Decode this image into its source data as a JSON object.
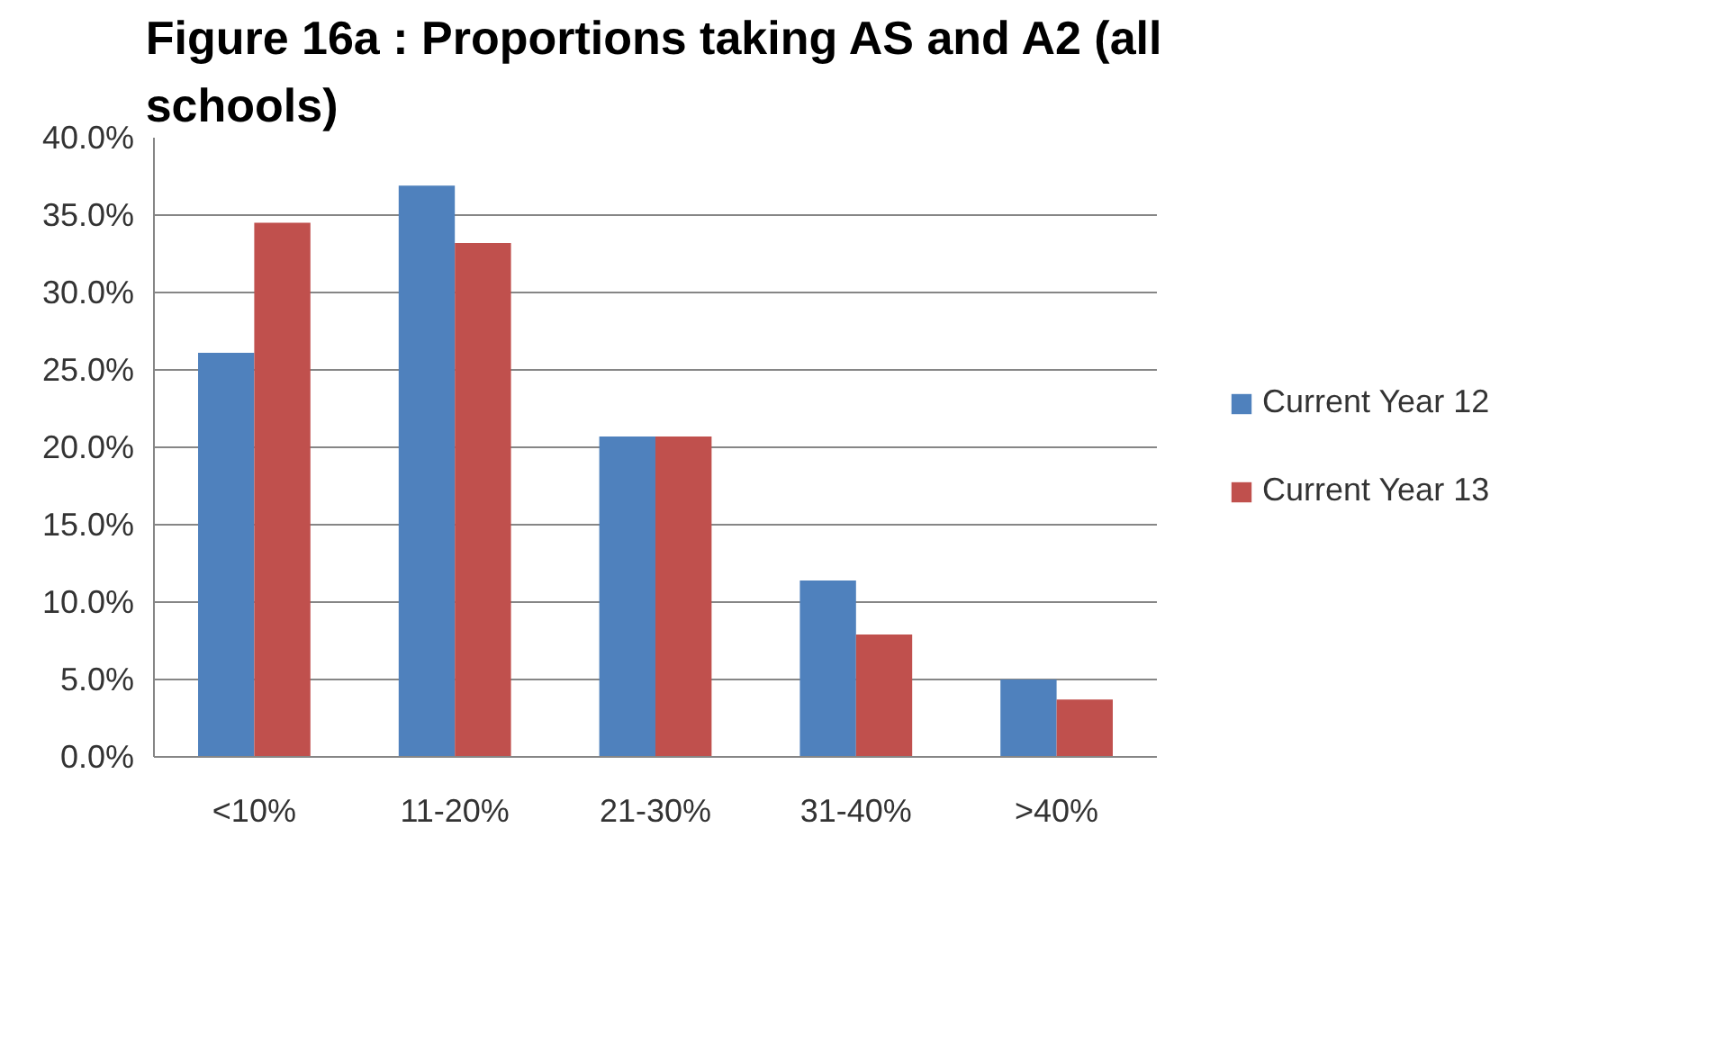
{
  "chart_data": {
    "type": "bar",
    "title": "Figure 16a : Proportions taking AS and A2 (all schools)",
    "categories": [
      "<10%",
      "11-20%",
      "21-30%",
      "31-40%",
      ">40%"
    ],
    "series": [
      {
        "name": "Current Year 12",
        "color": "#4f81bd",
        "values": [
          26.1,
          36.9,
          20.7,
          11.4,
          5.0
        ]
      },
      {
        "name": "Current Year 13",
        "color": "#c0504d",
        "values": [
          34.5,
          33.2,
          20.7,
          7.9,
          3.7
        ]
      }
    ],
    "ylim": [
      0,
      40
    ],
    "yticks": [
      {
        "value": 0,
        "label": "0.0%"
      },
      {
        "value": 5,
        "label": "5.0%"
      },
      {
        "value": 10,
        "label": "10.0%"
      },
      {
        "value": 15,
        "label": "15.0%"
      },
      {
        "value": 20,
        "label": "20.0%"
      },
      {
        "value": 25,
        "label": "25.0%"
      },
      {
        "value": 30,
        "label": "30.0%"
      },
      {
        "value": 35,
        "label": "35.0%"
      },
      {
        "value": 40,
        "label": "40.0%"
      }
    ],
    "grid": "y",
    "legend": "right"
  }
}
